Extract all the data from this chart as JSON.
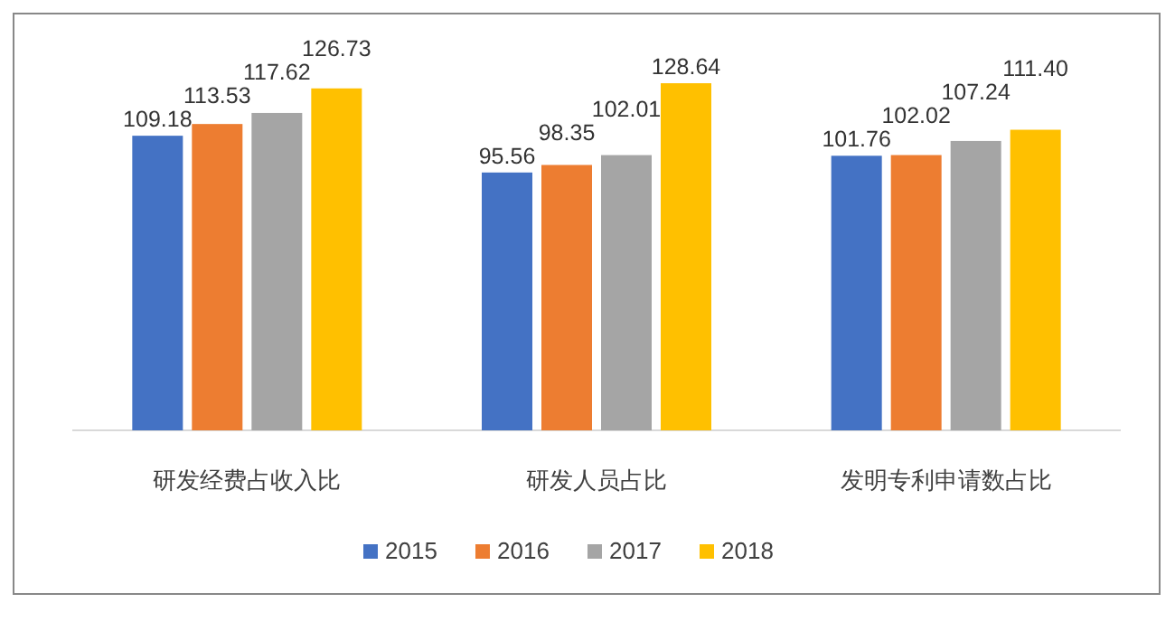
{
  "chart_data": {
    "type": "bar",
    "categories": [
      "研发经费占收入比",
      "研发人员占比",
      "发明专利申请数占比"
    ],
    "series": [
      {
        "name": "2015",
        "color": "#4472c4",
        "values": [
          109.18,
          95.56,
          101.76
        ],
        "value_labels": [
          "109.18",
          "95.56",
          "101.76"
        ]
      },
      {
        "name": "2016",
        "color": "#ed7d31",
        "values": [
          113.53,
          98.35,
          102.02
        ],
        "value_labels": [
          "113.53",
          "98.35",
          "102.02"
        ]
      },
      {
        "name": "2017",
        "color": "#a5a5a5",
        "values": [
          117.62,
          102.01,
          107.24
        ],
        "value_labels": [
          "117.62",
          "102.01",
          "107.24"
        ]
      },
      {
        "name": "2018",
        "color": "#ffc000",
        "values": [
          126.73,
          128.64,
          111.4
        ],
        "value_labels": [
          "126.73",
          "128.64",
          "111.40"
        ]
      }
    ],
    "legend": "bottom"
  }
}
